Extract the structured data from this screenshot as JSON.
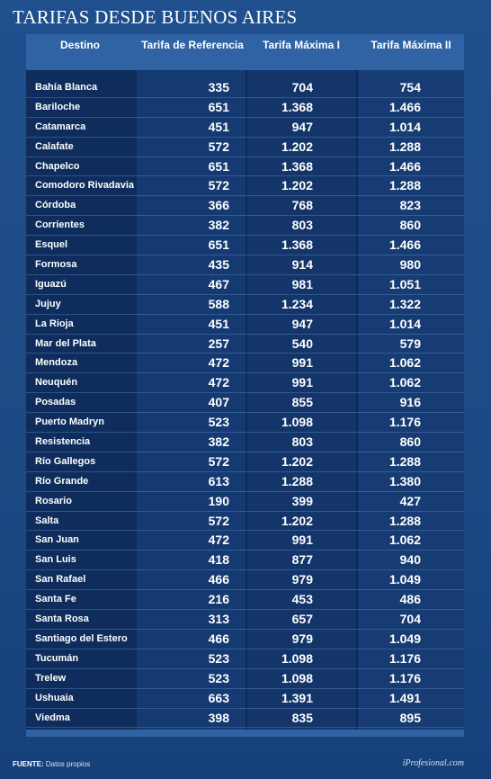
{
  "title": "TARIFAS DESDE BUENOS AIRES",
  "headers": {
    "destino": "Destino",
    "ref": "Tarifa de Referencia",
    "max1": "Tarifa Máxima I",
    "max2": "Tarifa Máxima II"
  },
  "rows": [
    {
      "dest": "Bahía Blanca",
      "ref": "335",
      "max1": "704",
      "max2": "754"
    },
    {
      "dest": "Bariloche",
      "ref": "651",
      "max1": "1.368",
      "max2": "1.466"
    },
    {
      "dest": "Catamarca",
      "ref": "451",
      "max1": "947",
      "max2": "1.014"
    },
    {
      "dest": "Calafate",
      "ref": "572",
      "max1": "1.202",
      "max2": "1.288"
    },
    {
      "dest": "Chapelco",
      "ref": "651",
      "max1": "1.368",
      "max2": "1.466"
    },
    {
      "dest": "Comodoro Rivadavia",
      "ref": "572",
      "max1": "1.202",
      "max2": "1.288"
    },
    {
      "dest": "Córdoba",
      "ref": "366",
      "max1": "768",
      "max2": "823"
    },
    {
      "dest": "Corrientes",
      "ref": "382",
      "max1": "803",
      "max2": "860"
    },
    {
      "dest": "Esquel",
      "ref": "651",
      "max1": "1.368",
      "max2": "1.466"
    },
    {
      "dest": "Formosa",
      "ref": "435",
      "max1": "914",
      "max2": "980"
    },
    {
      "dest": "Iguazú",
      "ref": "467",
      "max1": "981",
      "max2": "1.051"
    },
    {
      "dest": "Jujuy",
      "ref": "588",
      "max1": "1.234",
      "max2": "1.322"
    },
    {
      "dest": "La Rioja",
      "ref": "451",
      "max1": "947",
      "max2": "1.014"
    },
    {
      "dest": "Mar del Plata",
      "ref": "257",
      "max1": "540",
      "max2": "579"
    },
    {
      "dest": "Mendoza",
      "ref": "472",
      "max1": "991",
      "max2": "1.062"
    },
    {
      "dest": "Neuquén",
      "ref": "472",
      "max1": "991",
      "max2": "1.062"
    },
    {
      "dest": "Posadas",
      "ref": "407",
      "max1": "855",
      "max2": "916"
    },
    {
      "dest": "Puerto Madryn",
      "ref": "523",
      "max1": "1.098",
      "max2": "1.176"
    },
    {
      "dest": "Resistencia",
      "ref": "382",
      "max1": "803",
      "max2": "860"
    },
    {
      "dest": "Río Gallegos",
      "ref": "572",
      "max1": "1.202",
      "max2": "1.288"
    },
    {
      "dest": "Río Grande",
      "ref": "613",
      "max1": "1.288",
      "max2": "1.380"
    },
    {
      "dest": "Rosario",
      "ref": "190",
      "max1": "399",
      "max2": "427"
    },
    {
      "dest": "Salta",
      "ref": "572",
      "max1": "1.202",
      "max2": "1.288"
    },
    {
      "dest": "San Juan",
      "ref": "472",
      "max1": "991",
      "max2": "1.062"
    },
    {
      "dest": "San Luis",
      "ref": "418",
      "max1": "877",
      "max2": "940"
    },
    {
      "dest": "San Rafael",
      "ref": "466",
      "max1": "979",
      "max2": "1.049"
    },
    {
      "dest": "Santa Fe",
      "ref": "216",
      "max1": "453",
      "max2": "486"
    },
    {
      "dest": "Santa Rosa",
      "ref": "313",
      "max1": "657",
      "max2": "704"
    },
    {
      "dest": "Santiago del Estero",
      "ref": "466",
      "max1": "979",
      "max2": "1.049"
    },
    {
      "dest": "Tucumán",
      "ref": "523",
      "max1": "1.098",
      "max2": "1.176"
    },
    {
      "dest": "Trelew",
      "ref": "523",
      "max1": "1.098",
      "max2": "1.176"
    },
    {
      "dest": "Ushuaia",
      "ref": "663",
      "max1": "1.391",
      "max2": "1.491"
    },
    {
      "dest": "Viedma",
      "ref": "398",
      "max1": "835",
      "max2": "895"
    }
  ],
  "footer": {
    "source_label": "FUENTE:",
    "source_value": "Datos propios",
    "brand": "iProfesional.com"
  }
}
